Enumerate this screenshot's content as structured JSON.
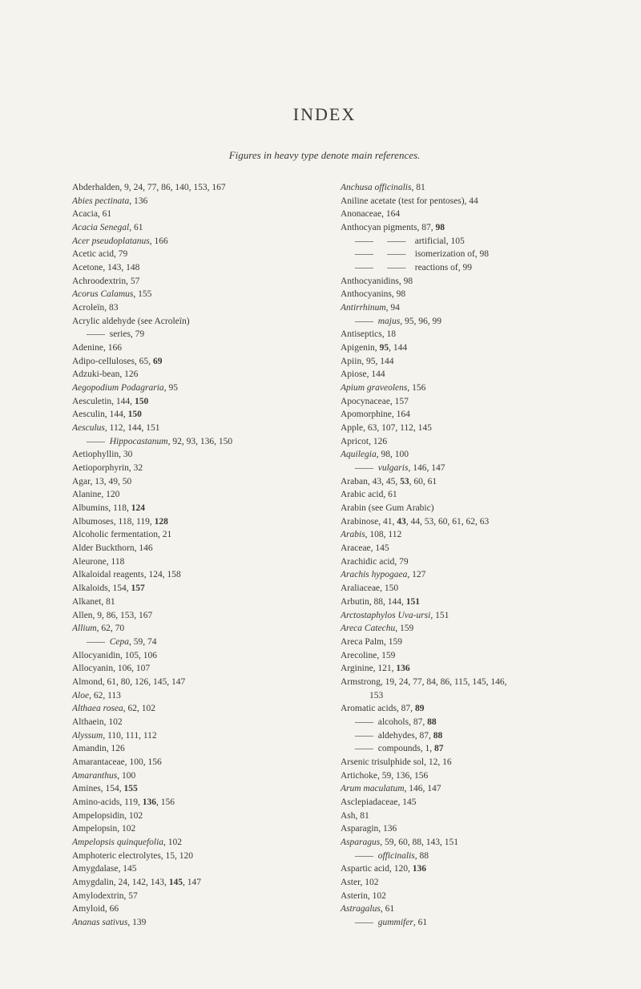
{
  "title": "INDEX",
  "subtitle": "Figures in heavy type denote main references.",
  "left": [
    [
      "Abderhalden, 9, 24, 77, 86, 140, 153, 167",
      0
    ],
    [
      "<i>Abies pectinata</i>, 136",
      0
    ],
    [
      "Acacia, 61",
      0
    ],
    [
      "<i>Acacia Senegal</i>, 61",
      0
    ],
    [
      "<i>Acer pseudoplatanus</i>, 166",
      0
    ],
    [
      "Acetic acid, 79",
      0
    ],
    [
      "Acetone, 143, 148",
      0
    ],
    [
      "Achroodextrin, 57",
      0
    ],
    [
      "<i>Acorus Calamus</i>, 155",
      0
    ],
    [
      "Acroleïn, 83",
      0
    ],
    [
      "Acrylic aldehyde (see Acroleïn)",
      0
    ],
    [
      "——&nbsp;&nbsp;series, 79",
      1
    ],
    [
      "Adenine, 166",
      0
    ],
    [
      "Adipo-celluloses, 65, <b>69</b>",
      0
    ],
    [
      "Adzuki-bean, 126",
      0
    ],
    [
      "<i>Aegopodium Podagraria</i>, 95",
      0
    ],
    [
      "Aesculetin, 144, <b>150</b>",
      0
    ],
    [
      "Aesculin, 144, <b>150</b>",
      0
    ],
    [
      "<i>Aesculus</i>, 112, 144, 151",
      0
    ],
    [
      "——&nbsp;&nbsp;<i>Hippocastanum</i>, 92, 93, 136, 150",
      1
    ],
    [
      "Aetiophyllin, 30",
      0
    ],
    [
      "Aetioporphyrin, 32",
      0
    ],
    [
      "Agar, 13, 49, 50",
      0
    ],
    [
      "Alanine, 120",
      0
    ],
    [
      "Albumins, 118, <b>124</b>",
      0
    ],
    [
      "Albumoses, 118, 119, <b>128</b>",
      0
    ],
    [
      "Alcoholic fermentation, 21",
      0
    ],
    [
      "Alder Buckthorn, 146",
      0
    ],
    [
      "Aleurone, 118",
      0
    ],
    [
      "Alkaloidal reagents, 124, 158",
      0
    ],
    [
      "Alkaloids, 154, <b>157</b>",
      0
    ],
    [
      "Alkanet, 81",
      0
    ],
    [
      "Allen, 9, 86, 153, 167",
      0
    ],
    [
      "<i>Allium</i>, 62, 70",
      0
    ],
    [
      "——&nbsp;&nbsp;<i>Cepa</i>, 59, 74",
      1
    ],
    [
      "Allocyanidin, 105, 106",
      0
    ],
    [
      "Allocyanin, 106, 107",
      0
    ],
    [
      "Almond, 61, 80, 126, 145, 147",
      0
    ],
    [
      "<i>Aloe</i>, 62, 113",
      0
    ],
    [
      "<i>Althaea rosea</i>, 62, 102",
      0
    ],
    [
      "Althaein, 102",
      0
    ],
    [
      "<i>Alyssum</i>, 110, 111, 112",
      0
    ],
    [
      "Amandin, 126",
      0
    ],
    [
      "Amarantaceae, 100, 156",
      0
    ],
    [
      "<i>Amaranthus</i>, 100",
      0
    ],
    [
      "Amines, 154, <b>155</b>",
      0
    ],
    [
      "Amino-acids, 119, <b>136</b>, 156",
      0
    ],
    [
      "Ampelopsidin, 102",
      0
    ],
    [
      "Ampelopsin, 102",
      0
    ],
    [
      "<i>Ampelopsis quinquefolia</i>, 102",
      0
    ],
    [
      "Amphoteric electrolytes, 15, 120",
      0
    ],
    [
      "Amygdalase, 145",
      0
    ],
    [
      "Amygdalin, 24, 142, 143, <b>145</b>, 147",
      0
    ],
    [
      "Amylodextrin, 57",
      0
    ],
    [
      "Amyloid, 66",
      0
    ],
    [
      "<i>Ananas sativus</i>, 139",
      0
    ]
  ],
  "right": [
    [
      "<i>Anchusa officinalis</i>, 81",
      0
    ],
    [
      "Aniline acetate (test for pentoses), 44",
      0
    ],
    [
      "Anonaceae, 164",
      0
    ],
    [
      "Anthocyan pigments, 87, <b>98</b>",
      0
    ],
    [
      "——&nbsp;&nbsp;&nbsp;&nbsp;&nbsp;&nbsp;——&nbsp;&nbsp;&nbsp;&nbsp;artificial, 105",
      1
    ],
    [
      "——&nbsp;&nbsp;&nbsp;&nbsp;&nbsp;&nbsp;——&nbsp;&nbsp;&nbsp;&nbsp;isomerization of, 98",
      1
    ],
    [
      "——&nbsp;&nbsp;&nbsp;&nbsp;&nbsp;&nbsp;——&nbsp;&nbsp;&nbsp;&nbsp;reactions of, 99",
      1
    ],
    [
      "Anthocyanidins, 98",
      0
    ],
    [
      "Anthocyanins, 98",
      0
    ],
    [
      "<i>Antirrhinum</i>, 94",
      0
    ],
    [
      "——&nbsp;&nbsp;<i>majus</i>, 95, 96, 99",
      1
    ],
    [
      "Antiseptics, 18",
      0
    ],
    [
      "Apigenin, <b>95</b>, 144",
      0
    ],
    [
      "Apiin, 95, 144",
      0
    ],
    [
      "Apiose, 144",
      0
    ],
    [
      "<i>Apium graveolens</i>, 156",
      0
    ],
    [
      "Apocynaceae, 157",
      0
    ],
    [
      "Apomorphine, 164",
      0
    ],
    [
      "Apple, 63, 107, 112, 145",
      0
    ],
    [
      "Apricot, 126",
      0
    ],
    [
      "<i>Aquilegia</i>, 98, 100",
      0
    ],
    [
      "——&nbsp;&nbsp;<i>vulgaris</i>, 146, 147",
      1
    ],
    [
      "Araban, 43, 45, <b>53</b>, 60, 61",
      0
    ],
    [
      "Arabic acid, 61",
      0
    ],
    [
      "Arabin (see Gum Arabic)",
      0
    ],
    [
      "Arabinose, 41, <b>43</b>, 44, 53, 60, 61, 62, 63",
      0
    ],
    [
      "<i>Arabis</i>, 108, 112",
      0
    ],
    [
      "Araceae, 145",
      0
    ],
    [
      "Arachidic acid, 79",
      0
    ],
    [
      "<i>Arachis hypogaea</i>, 127",
      0
    ],
    [
      "Araliaceae, 150",
      0
    ],
    [
      "Arbutin, 88, 144, <b>151</b>",
      0
    ],
    [
      "<i>Arctostaphylos Uva-ursi</i>, 151",
      0
    ],
    [
      "<i>Areca Catechu</i>, 159",
      0
    ],
    [
      "Areca Palm, 159",
      0
    ],
    [
      "Arecoline, 159",
      0
    ],
    [
      "Arginine, 121, <b>136</b>",
      0
    ],
    [
      "Armstrong, 19, 24, 77, 84, 86, 115, 145, 146,",
      0
    ],
    [
      "153",
      2
    ],
    [
      "Aromatic acids, 87, <b>89</b>",
      0
    ],
    [
      "——&nbsp;&nbsp;alcohols, 87, <b>88</b>",
      1
    ],
    [
      "——&nbsp;&nbsp;aldehydes, 87, <b>88</b>",
      1
    ],
    [
      "——&nbsp;&nbsp;compounds, 1, <b>87</b>",
      1
    ],
    [
      "Arsenic trisulphide sol, 12, 16",
      0
    ],
    [
      "Artichoke, 59, 136, 156",
      0
    ],
    [
      "<i>Arum maculatum</i>, 146, 147",
      0
    ],
    [
      "Asclepiadaceae, 145",
      0
    ],
    [
      "Ash, 81",
      0
    ],
    [
      "Asparagin, 136",
      0
    ],
    [
      "<i>Asparagus</i>, 59, 60, 88, 143, 151",
      0
    ],
    [
      "——&nbsp;&nbsp;<i>officinalis</i>, 88",
      1
    ],
    [
      "Aspartic acid, 120, <b>136</b>",
      0
    ],
    [
      "Aster, 102",
      0
    ],
    [
      "Asterin, 102",
      0
    ],
    [
      "<i>Astragalus</i>, 61",
      0
    ],
    [
      "——&nbsp;&nbsp;<i>gummifer</i>, 61",
      1
    ]
  ]
}
